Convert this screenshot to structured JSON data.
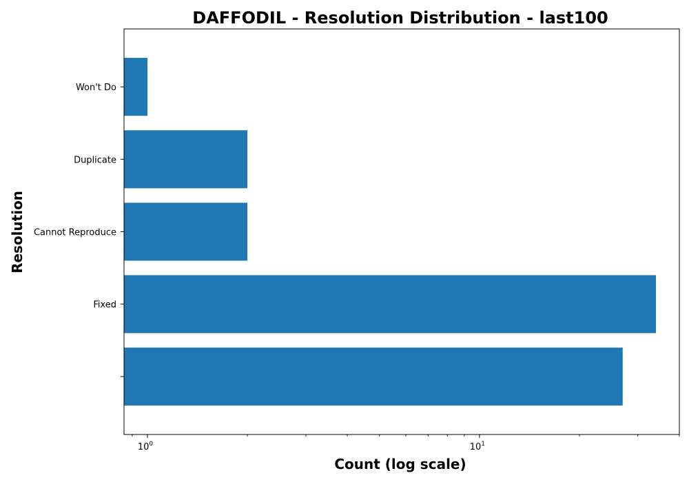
{
  "chart_data": {
    "type": "bar",
    "orientation": "horizontal",
    "title": "DAFFODIL - Resolution Distribution - last100",
    "xlabel": "Count (log scale)",
    "ylabel": "Resolution",
    "x_scale": "log",
    "xlim": [
      0.85,
      40
    ],
    "x_ticks": [
      {
        "value": 1,
        "base": "10",
        "exp": "0"
      },
      {
        "value": 10,
        "base": "10",
        "exp": "1"
      }
    ],
    "categories": [
      "",
      "Fixed",
      "Cannot Reproduce",
      "Duplicate",
      "Won't Do"
    ],
    "values": [
      27,
      34,
      2,
      2,
      1
    ],
    "bar_color": "#1f77b4",
    "grid": false,
    "legend": false
  }
}
